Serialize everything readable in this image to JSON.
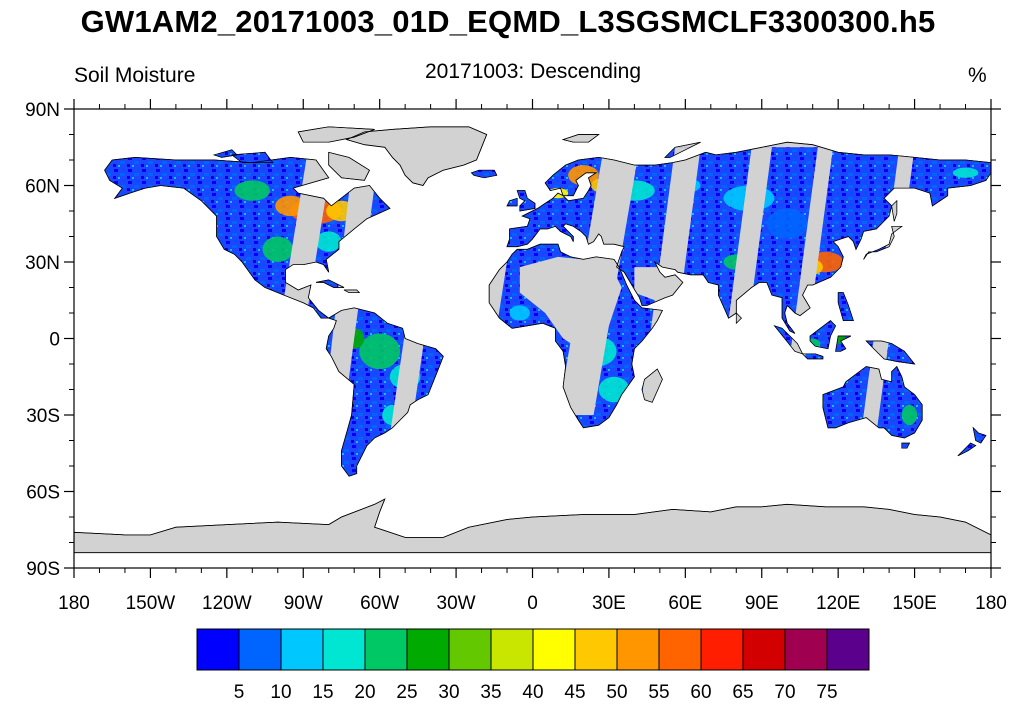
{
  "title": "GW1AM2_20171003_01D_EQMD_L3SGSMCLF3300300.h5",
  "left_label": "Soil Moisture",
  "center_label": "20171003: Descending",
  "units": "%",
  "lat_labels": [
    "90N",
    "60N",
    "30N",
    "0",
    "30S",
    "60S",
    "90S"
  ],
  "lon_labels": [
    "180",
    "150W",
    "120W",
    "90W",
    "60W",
    "30W",
    "0",
    "30E",
    "60E",
    "90E",
    "120E",
    "150E",
    "180"
  ],
  "colorbar": {
    "labels": [
      "5",
      "10",
      "15",
      "20",
      "25",
      "30",
      "35",
      "40",
      "45",
      "50",
      "55",
      "60",
      "65",
      "70",
      "75"
    ],
    "colors": [
      "#0000ff",
      "#0064ff",
      "#00c8ff",
      "#00e6d2",
      "#00c864",
      "#00aa00",
      "#64c800",
      "#c8e600",
      "#ffff00",
      "#ffc800",
      "#ff9600",
      "#ff6400",
      "#ff1e00",
      "#d20000",
      "#a00050",
      "#5a008c"
    ]
  },
  "map_colors": {
    "land_nodata": "#d2d2d2",
    "coastline": "#000000",
    "ocean": "#ffffff"
  },
  "chart_data": {
    "type": "heatmap",
    "title": "GW1AM2_20171003_01D_EQMD_L3SGSMCLF3300300.h5",
    "subtitle": "20171003: Descending",
    "variable": "Soil Moisture",
    "units": "%",
    "xlim": [
      -180,
      180
    ],
    "ylim": [
      -90,
      90
    ],
    "x_ticks": [
      -180,
      -150,
      -120,
      -90,
      -60,
      -30,
      0,
      30,
      60,
      90,
      120,
      150,
      180
    ],
    "y_ticks": [
      90,
      60,
      30,
      0,
      -30,
      -60,
      -90
    ],
    "color_levels": [
      5,
      10,
      15,
      20,
      25,
      30,
      35,
      40,
      45,
      50,
      55,
      60,
      65,
      70,
      75
    ]
  }
}
